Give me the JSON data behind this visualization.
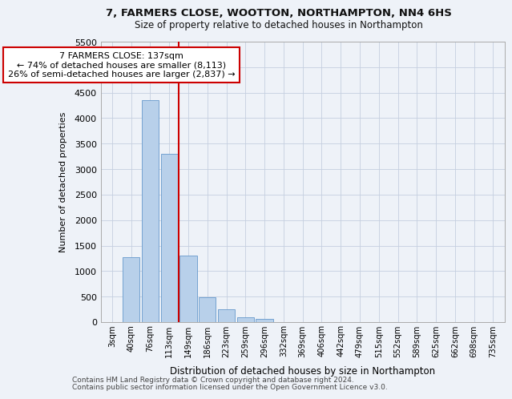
{
  "title1": "7, FARMERS CLOSE, WOOTTON, NORTHAMPTON, NN4 6HS",
  "title2": "Size of property relative to detached houses in Northampton",
  "xlabel": "Distribution of detached houses by size in Northampton",
  "ylabel": "Number of detached properties",
  "categories": [
    "3sqm",
    "40sqm",
    "76sqm",
    "113sqm",
    "149sqm",
    "186sqm",
    "223sqm",
    "259sqm",
    "296sqm",
    "332sqm",
    "369sqm",
    "406sqm",
    "442sqm",
    "479sqm",
    "515sqm",
    "552sqm",
    "589sqm",
    "625sqm",
    "662sqm",
    "698sqm",
    "735sqm"
  ],
  "values": [
    0,
    1270,
    4350,
    3300,
    1300,
    480,
    250,
    100,
    60,
    0,
    0,
    0,
    0,
    0,
    0,
    0,
    0,
    0,
    0,
    0,
    0
  ],
  "bar_color": "#b8d0ea",
  "bar_edge_color": "#6699cc",
  "vline_color": "#cc0000",
  "vline_x": 3.5,
  "annotation_text": "7 FARMERS CLOSE: 137sqm\n← 74% of detached houses are smaller (8,113)\n26% of semi-detached houses are larger (2,837) →",
  "annotation_box_color": "#ffffff",
  "annotation_box_edge": "#cc0000",
  "ylim": [
    0,
    5500
  ],
  "yticks": [
    0,
    500,
    1000,
    1500,
    2000,
    2500,
    3000,
    3500,
    4000,
    4500,
    5000,
    5500
  ],
  "footer1": "Contains HM Land Registry data © Crown copyright and database right 2024.",
  "footer2": "Contains public sector information licensed under the Open Government Licence v3.0.",
  "bg_color": "#eef2f8",
  "grid_color": "#c5cfe0"
}
